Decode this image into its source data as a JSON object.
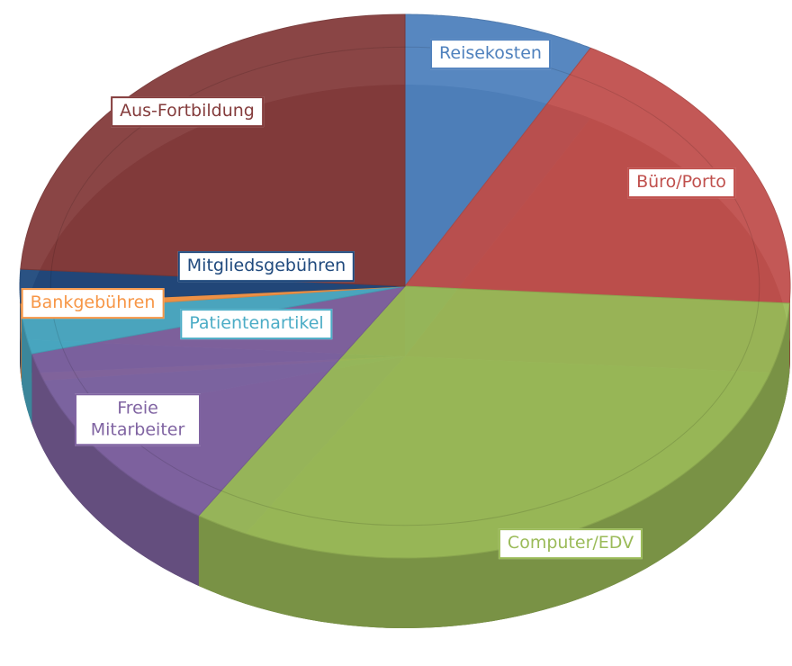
{
  "chart_data": {
    "type": "pie",
    "categories": [
      "Reisekosten",
      "Büro/Porto",
      "Computer/EDV",
      "Freie Mitarbeiter",
      "Patientenartikel",
      "Bankgebühren",
      "Mitgliedsgebühren",
      "Aus-Fortbildung"
    ],
    "values": [
      8,
      18,
      33,
      12,
      2.5,
      0.5,
      2,
      24
    ],
    "colors": [
      "#4f81bd",
      "#c0504d",
      "#9bbb59",
      "#8064a2",
      "#4bacc6",
      "#f79646",
      "#1f497d",
      "#843c3c"
    ]
  }
}
